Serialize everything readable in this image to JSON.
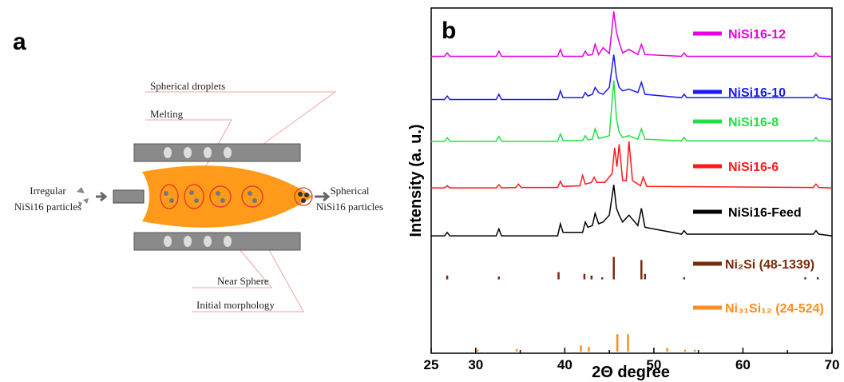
{
  "panel_a": {
    "label": "a",
    "spherical_droplets": "Spherical droplets",
    "melting": "Melting",
    "irregular": [
      "Irregular",
      "NiSi16 particles"
    ],
    "spherical": [
      "Spherical",
      "NiSi16 particles"
    ],
    "near_sphere": "Near Sphere",
    "initial_morphology": "Initial morphology"
  },
  "chart_data": {
    "type": "line",
    "panel_label": "b",
    "x_label": "2Θ degree",
    "y_label": "Intensity (a. u.)",
    "xlim": [
      25,
      70
    ],
    "xticks": [
      25,
      30,
      40,
      50,
      60,
      70
    ],
    "xminor_ticks": [
      35,
      45,
      55,
      65
    ],
    "ylim": [
      0,
      100
    ],
    "series": [
      {
        "name": "NiSi16-12",
        "color": "#e600e6",
        "x": [
          25,
          26.5,
          26.8,
          27.1,
          32.3,
          32.6,
          32.9,
          39.2,
          39.5,
          39.8,
          42,
          42.3,
          42.6,
          43.1,
          43.4,
          43.8,
          44.3,
          45,
          45.5,
          45.8,
          46.1,
          46.5,
          47.2,
          48.2,
          48.6,
          49,
          53.1,
          53.4,
          53.7,
          67.9,
          68.2,
          68.5,
          70
        ],
        "values": [
          86,
          86,
          87,
          86,
          86,
          87.5,
          86,
          86,
          88,
          86,
          86,
          87.5,
          86.3,
          86.5,
          89.5,
          86.5,
          88.5,
          86.8,
          99,
          93,
          90,
          87,
          88,
          86.5,
          89.5,
          86.5,
          86,
          87,
          86,
          86,
          87,
          86,
          86
        ]
      },
      {
        "name": "NiSi16-10",
        "color": "#1a1aff",
        "x": [
          25,
          26.5,
          26.8,
          27.1,
          32.3,
          32.6,
          32.9,
          39.2,
          39.5,
          39.8,
          42,
          42.3,
          42.6,
          43.1,
          43.4,
          43.8,
          44.3,
          45,
          45.5,
          45.8,
          46.1,
          46.5,
          47.2,
          48.2,
          48.6,
          49,
          53.1,
          53.4,
          53.7,
          67.9,
          68.2,
          68.5,
          70
        ],
        "values": [
          73.5,
          73.5,
          74.5,
          73.5,
          73.5,
          75,
          73.5,
          73.5,
          76,
          74,
          74,
          75.5,
          74.5,
          75,
          77,
          75.5,
          75,
          77,
          86.5,
          80,
          77,
          76,
          76.5,
          75.5,
          78.5,
          75,
          74,
          75,
          74,
          74,
          75,
          74,
          73.5
        ]
      },
      {
        "name": "NiSi16-8",
        "color": "#22e044",
        "x": [
          25,
          26.5,
          26.8,
          27.1,
          32.3,
          32.6,
          32.9,
          39.2,
          39.5,
          39.8,
          42,
          42.3,
          42.6,
          43.1,
          43.4,
          43.8,
          44.3,
          45,
          45.5,
          45.8,
          46.1,
          46.5,
          47.2,
          48.2,
          48.6,
          49,
          53.1,
          53.4,
          53.7,
          67.9,
          68.2,
          68.5,
          70
        ],
        "values": [
          61.4,
          61.4,
          62.4,
          61.4,
          61.4,
          62.8,
          61.4,
          61.4,
          63.5,
          61.6,
          61.6,
          63,
          61.8,
          62,
          65,
          62.2,
          62.5,
          63,
          79,
          68,
          64,
          62.5,
          63,
          62,
          65,
          62,
          61.5,
          62.5,
          61.5,
          61.5,
          62.5,
          61.5,
          61.4
        ]
      },
      {
        "name": "NiSi16-6",
        "color": "#ff1a1a",
        "x": [
          25,
          26.5,
          26.8,
          27.1,
          32.3,
          32.6,
          32.9,
          34.5,
          34.8,
          35.1,
          39.2,
          39.5,
          39.8,
          41.7,
          42,
          42.3,
          43,
          43.3,
          43.6,
          44.5,
          45.3,
          45.6,
          45.85,
          46.1,
          46.5,
          46.9,
          47.2,
          47.6,
          48.5,
          48.8,
          49.2,
          67.9,
          68.2,
          68.5,
          70
        ],
        "values": [
          47.9,
          47.9,
          48.5,
          47.9,
          47.9,
          48.8,
          47.9,
          48,
          49,
          48,
          48,
          49.8,
          48.3,
          48.5,
          51.5,
          49,
          49.5,
          51,
          49.5,
          49.5,
          52,
          59.5,
          54,
          60.5,
          50,
          50,
          61.4,
          50,
          48.5,
          51,
          48.3,
          48,
          49,
          48,
          47.9
        ]
      },
      {
        "name": "NiSi16-Feed",
        "color": "#000000",
        "x": [
          25,
          26.5,
          26.8,
          27.1,
          32.3,
          32.6,
          32.9,
          39.2,
          39.5,
          39.8,
          42,
          42.3,
          42.6,
          43.1,
          43.4,
          43.8,
          44.3,
          45,
          45.5,
          45.8,
          46.1,
          46.5,
          47.2,
          48.2,
          48.6,
          49,
          53.1,
          53.4,
          53.7,
          67.9,
          68.2,
          68.5,
          70
        ],
        "values": [
          34,
          34,
          35,
          34,
          34,
          36,
          34,
          34,
          37.5,
          35,
          35,
          38,
          36.5,
          37,
          40.5,
          37.5,
          38,
          40,
          48.8,
          42,
          40,
          38,
          40,
          37,
          42,
          36.5,
          34.5,
          35.5,
          34.5,
          34.5,
          35.5,
          34.5,
          34
        ]
      },
      {
        "name": "Ni₂Si (48-1339)",
        "color": "#7a2a0a",
        "style": "stick",
        "baseline": 21.4,
        "x": [
          26.8,
          32.6,
          39.3,
          42.2,
          43,
          44.2,
          45.5,
          48.6,
          49,
          53.4,
          67,
          68.4
        ],
        "values": [
          22.5,
          22.2,
          23.5,
          23,
          22.5,
          22,
          27.9,
          27,
          23,
          22,
          22,
          22
        ]
      },
      {
        "name": "Ni₃₁Si₁₂ (24-524)",
        "color": "#ff8c1a",
        "style": "stick",
        "baseline": 0.5,
        "x": [
          30.2,
          34.6,
          41.8,
          42.7,
          45.9,
          47.1,
          51.5,
          53.5,
          54.6
        ],
        "values": [
          1,
          1.2,
          2.2,
          1.8,
          5.5,
          5.5,
          1.5,
          1,
          1
        ]
      }
    ]
  }
}
